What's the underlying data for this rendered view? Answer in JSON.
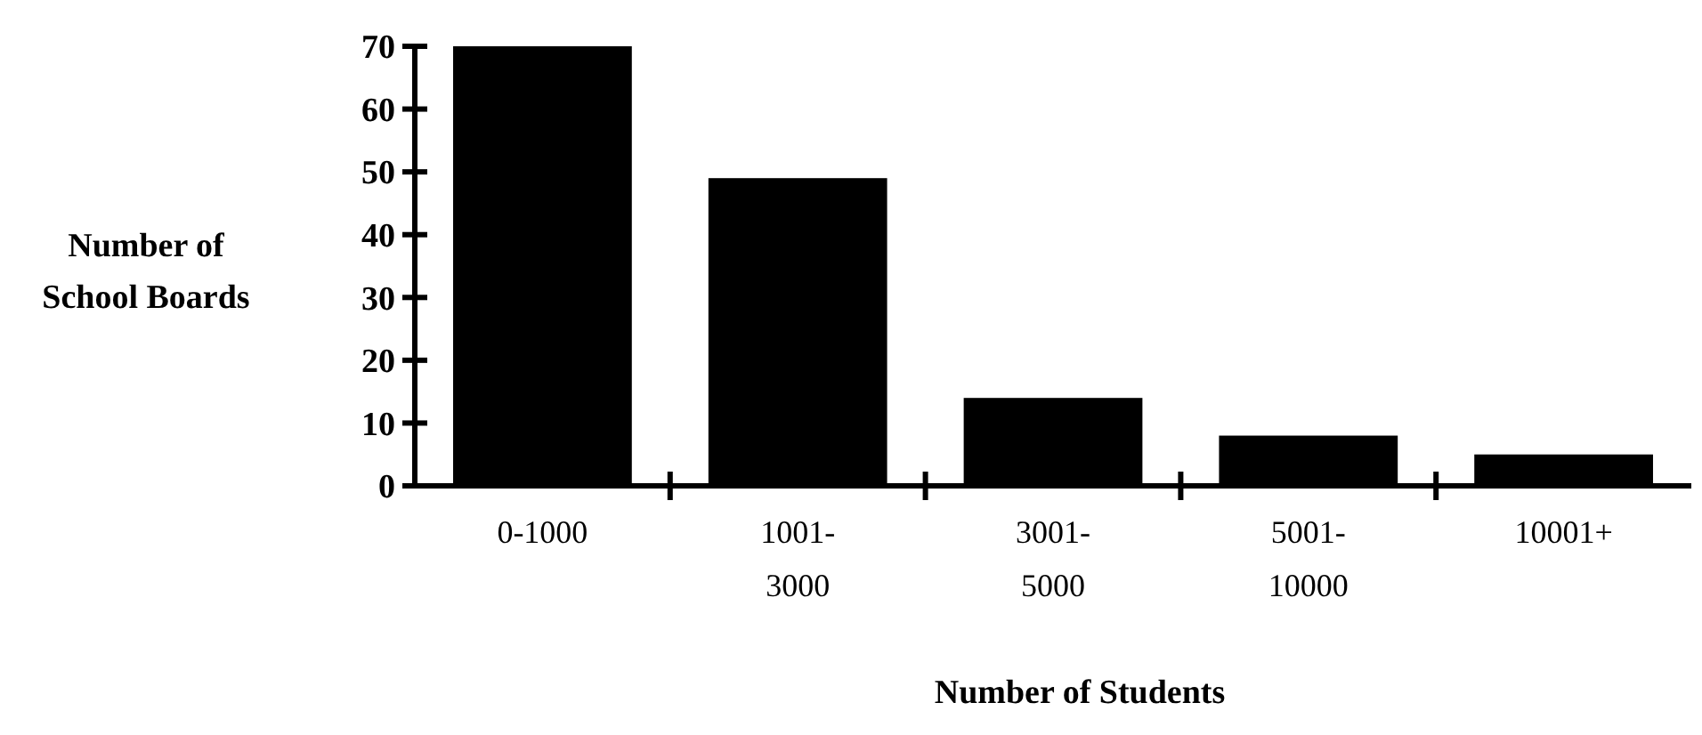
{
  "chart_data": {
    "type": "bar",
    "categories": [
      "0-1000",
      "1001-\n3000",
      "3001-\n5000",
      "5001-\n10000",
      "10001+"
    ],
    "values": [
      70,
      49,
      14,
      8,
      5
    ],
    "color": "#000000",
    "ylim": [
      0,
      70
    ],
    "yticks": [
      0,
      10,
      20,
      30,
      40,
      50,
      60,
      70
    ],
    "ylabel": "Number of\nSchool Boards",
    "xlabel": "Number of Students",
    "grid": false
  }
}
